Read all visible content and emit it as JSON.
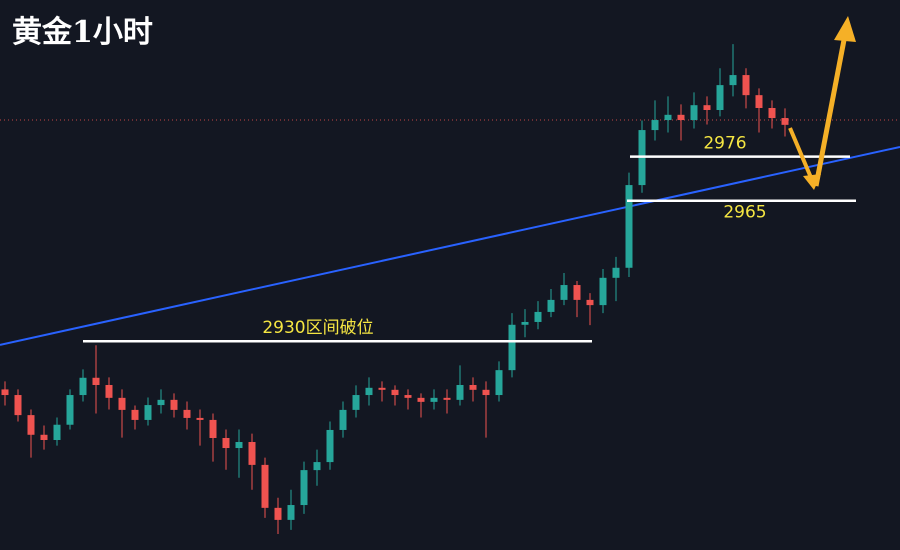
{
  "chart_data": {
    "type": "candlestick",
    "title": "黄金1小时",
    "ylim": [
      2878,
      3015
    ],
    "up_color": "#26a69a",
    "down_color": "#ef5350",
    "open": [
      2918.0,
      2916.6,
      2911.6,
      2906.7,
      2905.4,
      2909.2,
      2916.6,
      2920.9,
      2919.1,
      2915.9,
      2912.9,
      2910.4,
      2914.1,
      2915.4,
      2912.9,
      2910.9,
      2910.4,
      2905.9,
      2903.4,
      2904.9,
      2899.2,
      2888.5,
      2885.5,
      2889.2,
      2897.9,
      2899.9,
      2907.9,
      2912.9,
      2916.6,
      2918.4,
      2917.9,
      2916.6,
      2915.9,
      2914.9,
      2915.9,
      2915.4,
      2919.1,
      2917.9,
      2916.6,
      2922.8,
      2934.1,
      2934.8,
      2937.3,
      2940.3,
      2944.0,
      2940.3,
      2939.0,
      2945.8,
      2948.3,
      2968.9,
      2982.6,
      2985.1,
      2986.4,
      2985.1,
      2988.8,
      2987.6,
      2993.8,
      2996.3,
      2991.3,
      2988.1,
      2985.6
    ],
    "high": [
      2920,
      2918,
      2913,
      2909,
      2911,
      2918,
      2923,
      2929,
      2921,
      2918,
      2914,
      2916,
      2918,
      2917,
      2915,
      2913,
      2912,
      2908,
      2908,
      2907,
      2901,
      2891,
      2893,
      2900,
      2903,
      2910,
      2915,
      2919,
      2921,
      2920,
      2919,
      2918,
      2917,
      2918,
      2918,
      2924,
      2921,
      2920,
      2925,
      2937,
      2938,
      2940,
      2943,
      2947,
      2945,
      2942,
      2948,
      2951,
      2972,
      2985,
      2990,
      2991,
      2989,
      2992,
      2991,
      2998,
      3004,
      2998,
      2993,
      2990,
      2988
    ],
    "low": [
      2914,
      2910,
      2901,
      2903,
      2904,
      2908,
      2915,
      2912,
      2913,
      2906,
      2908,
      2909,
      2912,
      2911,
      2908,
      2904,
      2900,
      2898,
      2896,
      2893,
      2886,
      2882,
      2883,
      2887,
      2894,
      2898,
      2906,
      2911,
      2914,
      2915,
      2914,
      2913,
      2911,
      2913,
      2912,
      2914,
      2915,
      2906,
      2915,
      2921,
      2931,
      2933,
      2936,
      2939,
      2936,
      2934,
      2937,
      2940,
      2946,
      2967,
      2980,
      2982,
      2980,
      2983,
      2984,
      2986,
      2991,
      2988,
      2982,
      2983,
      2981
    ],
    "close": [
      2916.6,
      2911.6,
      2906.7,
      2905.4,
      2909.2,
      2916.6,
      2920.9,
      2919.1,
      2915.9,
      2912.9,
      2910.4,
      2914.1,
      2915.4,
      2912.9,
      2910.9,
      2910.4,
      2905.9,
      2903.4,
      2904.9,
      2899.2,
      2888.5,
      2885.5,
      2889.2,
      2897.9,
      2899.9,
      2907.9,
      2912.9,
      2916.6,
      2918.4,
      2917.9,
      2916.6,
      2915.9,
      2914.9,
      2915.9,
      2915.4,
      2919.1,
      2917.9,
      2916.6,
      2922.8,
      2934.1,
      2934.8,
      2937.3,
      2940.3,
      2944.0,
      2940.3,
      2939.0,
      2945.8,
      2948.3,
      2968.9,
      2982.6,
      2985.1,
      2986.4,
      2985.1,
      2988.8,
      2987.6,
      2993.8,
      2996.3,
      2991.3,
      2988.1,
      2985.6,
      2983.9
    ],
    "price_line": {
      "value": 2985.1,
      "color": "#ef5350"
    },
    "trendline": {
      "color": "#2962ff",
      "values": [
        2929.1,
        2978.4
      ]
    },
    "annotations": [
      {
        "label": "2976",
        "value": 2976
      },
      {
        "label": "2965",
        "value": 2965
      },
      {
        "label": "2930区间破位",
        "value": 2930
      }
    ],
    "annotation_color": "#ffffff"
  }
}
